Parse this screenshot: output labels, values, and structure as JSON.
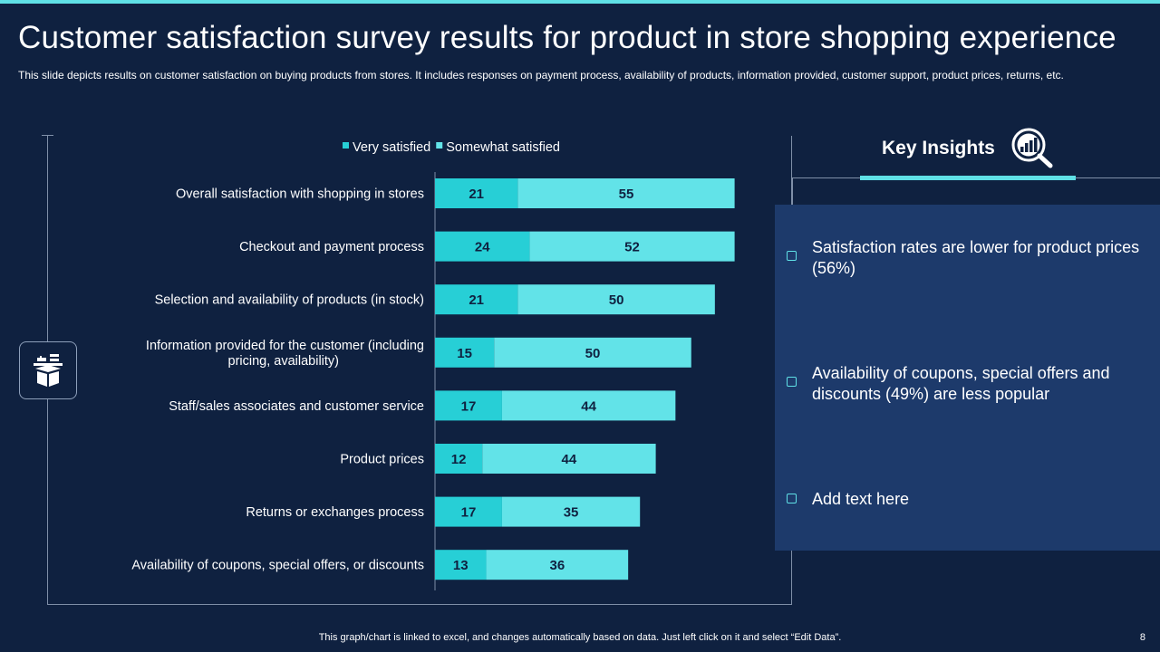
{
  "title": "Customer satisfaction survey results for product in store shopping experience",
  "subtitle": "This slide depicts results on customer satisfaction on buying products from stores. It includes responses on payment process, availability of products, information provided, customer support, product prices, returns, etc.",
  "chart_data": {
    "type": "bar",
    "orientation": "horizontal",
    "stacked": true,
    "categories": [
      "Overall satisfaction with shopping in stores",
      "Checkout and payment process",
      "Selection and availability of products (in stock)",
      "Information provided for the customer (including pricing, availability)",
      "Staff/sales associates and customer service",
      "Product prices",
      "Returns or exchanges process",
      "Availability of coupons, special offers, or discounts"
    ],
    "category_lines": [
      [
        "Overall satisfaction with shopping in stores"
      ],
      [
        "Checkout and payment process"
      ],
      [
        "Selection and availability of products (in stock)"
      ],
      [
        "Information provided for the customer (including",
        "pricing, availability)"
      ],
      [
        "Staff/sales associates and customer service"
      ],
      [
        "Product prices"
      ],
      [
        "Returns or exchanges process"
      ],
      [
        "Availability of coupons, special offers, or discounts"
      ]
    ],
    "series": [
      {
        "name": "Very satisfied",
        "color": "#27cfd6",
        "values": [
          21,
          24,
          21,
          15,
          17,
          12,
          17,
          13
        ]
      },
      {
        "name": "Somewhat satisfied",
        "color": "#62e3e8",
        "values": [
          55,
          52,
          50,
          50,
          44,
          44,
          35,
          36
        ]
      }
    ],
    "xlim": [
      0,
      100
    ],
    "legend_position": "top"
  },
  "insights": {
    "title": "Key Insights",
    "items": [
      "Satisfaction rates are lower for product prices (56%)",
      "Availability of coupons, special offers and discounts (49%) are less popular",
      "Add text here"
    ]
  },
  "footer": "This graph/chart is linked to excel,  and changes automatically based on data. Just left click on it and select “Edit Data”.",
  "page_number": "8",
  "colors": {
    "background": "#0f2140",
    "accent": "#5fe0e6",
    "panel": "#1d3a6b"
  }
}
